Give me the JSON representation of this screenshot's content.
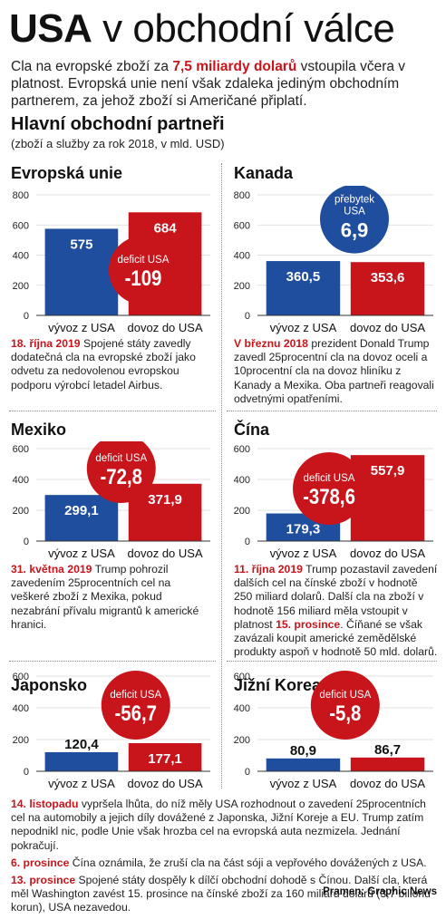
{
  "header": {
    "title_bold": "USA",
    "title_rest": "v obchodní válce",
    "intro_pre": "Cla na evropské zboží za ",
    "intro_highlight": "7,5 miliardy dolarů",
    "intro_post": " vstoupila včera v platnost. Evropská unie není však zdaleka jediným obchodním partnerem, za jehož zboží si Američané připlatí."
  },
  "section": {
    "title": "Hlavní obchodní partneři",
    "subtitle": "(zboží a služby za rok 2018, v mld. USD)"
  },
  "colors": {
    "export": "#1f4e9e",
    "import": "#c8141b",
    "axis": "#333333",
    "gridline": "#cccccc"
  },
  "chart_data": [
    {
      "type": "bar",
      "title": "Evropská unie",
      "categories": [
        "vývoz z USA",
        "dovoz do USA"
      ],
      "values": [
        575,
        684
      ],
      "value_labels": [
        "575",
        "684"
      ],
      "ylim": [
        0,
        800
      ],
      "yticks": [
        0,
        200,
        400,
        600,
        800
      ],
      "badge": {
        "label": "deficit USA",
        "value": "-109",
        "color": "#c8141b"
      }
    },
    {
      "type": "bar",
      "title": "Kanada",
      "categories": [
        "vývoz z USA",
        "dovoz do USA"
      ],
      "values": [
        360.5,
        353.6
      ],
      "value_labels": [
        "360,5",
        "353,6"
      ],
      "ylim": [
        0,
        800
      ],
      "yticks": [
        0,
        200,
        400,
        600,
        800
      ],
      "badge": {
        "label_line1": "přebytek",
        "label_line2": "USA",
        "value": "6,9",
        "color": "#1f4e9e"
      }
    },
    {
      "type": "bar",
      "title": "Mexiko",
      "categories": [
        "vývoz z USA",
        "dovoz do USA"
      ],
      "values": [
        299.1,
        371.9
      ],
      "value_labels": [
        "299,1",
        "371,9"
      ],
      "ylim": [
        0,
        600
      ],
      "yticks": [
        0,
        200,
        400,
        600
      ],
      "badge": {
        "label": "deficit USA",
        "value": "-72,8",
        "color": "#c8141b"
      }
    },
    {
      "type": "bar",
      "title": "Čína",
      "categories": [
        "vývoz z USA",
        "dovoz do USA"
      ],
      "values": [
        179.3,
        557.9
      ],
      "value_labels": [
        "179,3",
        "557,9"
      ],
      "ylim": [
        0,
        600
      ],
      "yticks": [
        0,
        200,
        400,
        600
      ],
      "badge": {
        "label": "deficit USA",
        "value": "-378,6",
        "color": "#c8141b"
      }
    },
    {
      "type": "bar",
      "title": "Japonsko",
      "categories": [
        "vývoz z USA",
        "dovoz do USA"
      ],
      "values": [
        120.4,
        177.1
      ],
      "value_labels": [
        "120,4",
        "177,1"
      ],
      "ylim": [
        0,
        600
      ],
      "yticks": [
        0,
        200,
        400,
        600
      ],
      "badge": {
        "label": "deficit USA",
        "value": "-56,7",
        "color": "#c8141b"
      }
    },
    {
      "type": "bar",
      "title": "Jižní Korea",
      "categories": [
        "vývoz z USA",
        "dovoz do USA"
      ],
      "values": [
        80.9,
        86.7
      ],
      "value_labels": [
        "80,9",
        "86,7"
      ],
      "ylim": [
        0,
        600
      ],
      "yticks": [
        0,
        200,
        400,
        600
      ],
      "badge": {
        "label": "deficit USA",
        "value": "-5,8",
        "color": "#c8141b"
      }
    }
  ],
  "notes": {
    "eu": {
      "date": "18. října 2019",
      "text": " Spojené státy zavedly dodatečná cla na evropské zboží jako odvetu za nedovolenou evropskou podporu výrobcí letadel Airbus."
    },
    "kanada": {
      "date": "V březnu 2018",
      "text": " prezident Donald Trump zavedl 25procentní cla na dovoz oceli a 10procentní cla na dovoz hliníku z Kanady a Mexika. Oba partneři reagovali odvetnými opatřeními."
    },
    "mexiko": {
      "date": "31. května 2019",
      "text": " Trump pohrozil zavedením 25procentních cel na veškeré zboží z Mexika, pokud nezabrání přívalu migrantů k americké hranici."
    },
    "cina": {
      "date": "11. října 2019",
      "text": " Trump pozastavil zavedení dalších cel na čínské zboží v hodnotě 250 miliard dolarů. Další cla na zboží v hodnotě 156 miliard měla vstoupit v platnost ",
      "date2": "15. prosince",
      "text2": ". Číňané se však zavázali koupit americké zemědělské produkty aspoň v hodnotě 50 mld. dolarů."
    },
    "bottom": [
      {
        "date": "14. listopadu",
        "text": " vypršela lhůta, do níž měly USA rozhodnout o zavedení 25procentních cel na automobily a jejich díly dovážené z Japonska, Jižní Koreje a EU. Trump zatím nepodnikl nic, podle Unie však hrozba cel na evropská auta nezmizela. Jednání pokračují."
      },
      {
        "date": "6. prosince",
        "text": " Čína oznámila, že zruší cla na část sóji a vepřového dovážených z USA."
      },
      {
        "date": "13. prosince",
        "text": " Spojené státy dospěly k dílčí obchodní dohodě s Čínou. Další cla, která měl Washington zavést 15. prosince na čínské zboží za 160 miliard dolarů (3,7 bilionu korun), USA nezavedou."
      }
    ]
  },
  "source": "Pramen: Graphic News"
}
